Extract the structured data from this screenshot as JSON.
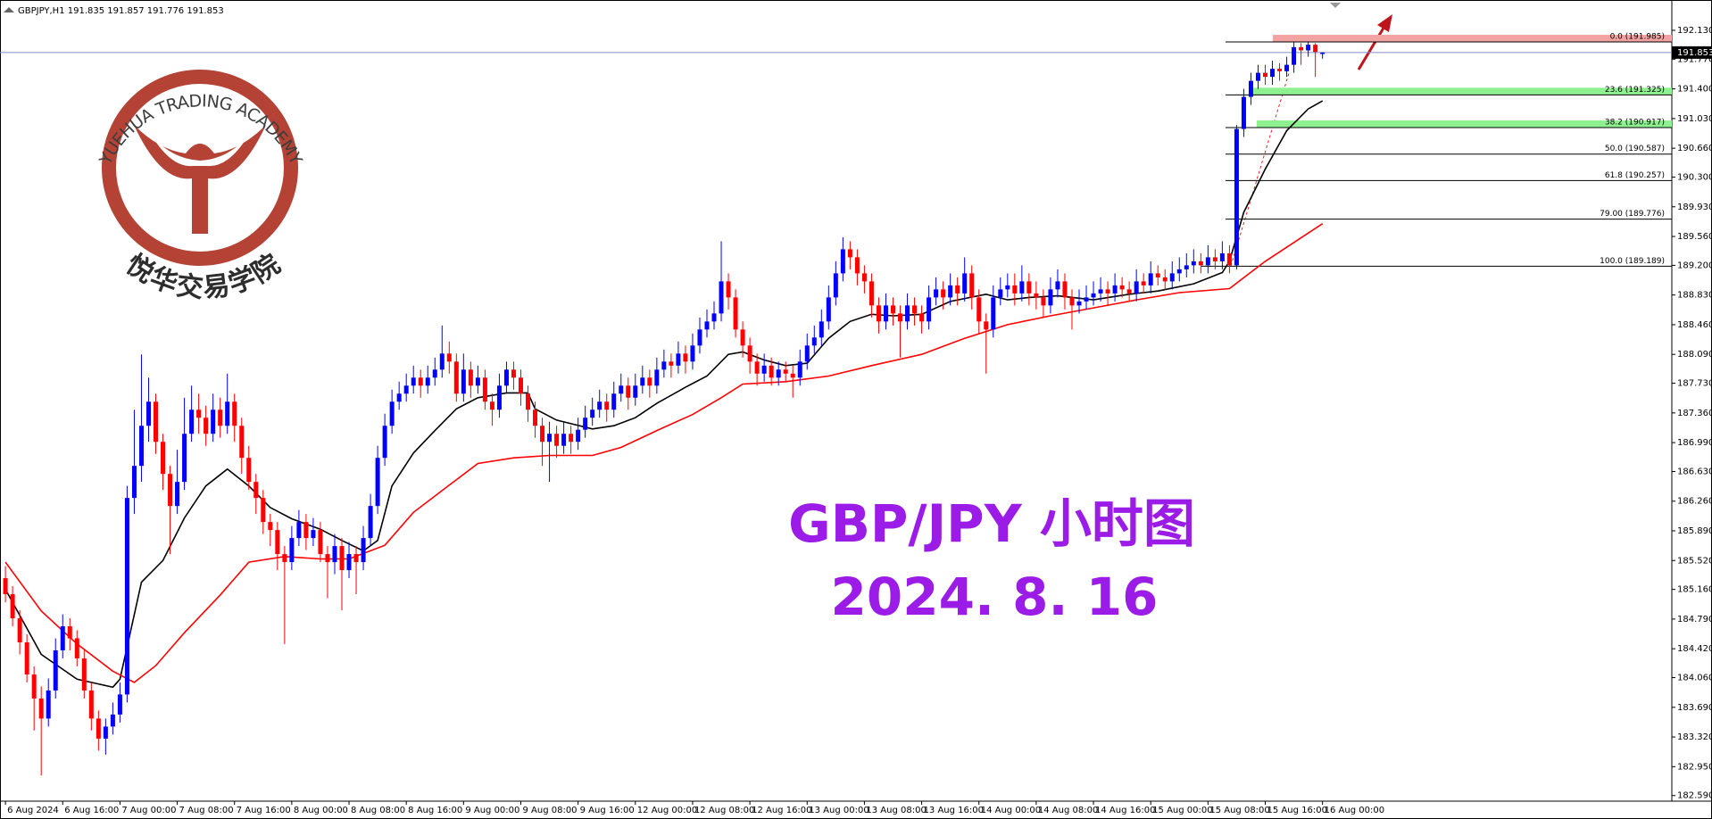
{
  "chart_data": {
    "type": "candlestick",
    "header": "GBPJPY,H1  191.835 191.857 191.776 191.853",
    "logo": {
      "text_en": "YUEHUA TRADING ACADEMY",
      "text_cn": "悦华交易学院"
    },
    "annotations": [
      "GBP/JPY 小时图",
      "2024. 8. 16"
    ],
    "up_color": "#0000ff",
    "down_color": "#ff0000",
    "xlim": [
      -0.76,
      232.8
    ],
    "ylim": [
      182.52,
      192.43
    ],
    "yticks": [
      {
        "value": 192.13,
        "label": "192.130"
      },
      {
        "value": 191.77,
        "label": "191.770"
      },
      {
        "value": 191.4,
        "label": "191.400"
      },
      {
        "value": 191.03,
        "label": "191.030"
      },
      {
        "value": 190.66,
        "label": "190.660"
      },
      {
        "value": 190.3,
        "label": "190.300"
      },
      {
        "value": 189.93,
        "label": "189.930"
      },
      {
        "value": 189.56,
        "label": "189.560"
      },
      {
        "value": 189.2,
        "label": "189.200"
      },
      {
        "value": 188.83,
        "label": "188.830"
      },
      {
        "value": 188.46,
        "label": "188.460"
      },
      {
        "value": 188.09,
        "label": "188.090"
      },
      {
        "value": 187.73,
        "label": "187.730"
      },
      {
        "value": 187.36,
        "label": "187.360"
      },
      {
        "value": 186.99,
        "label": "186.990"
      },
      {
        "value": 186.63,
        "label": "186.630"
      },
      {
        "value": 186.26,
        "label": "186.260"
      },
      {
        "value": 185.89,
        "label": "185.890"
      },
      {
        "value": 185.52,
        "label": "185.520"
      },
      {
        "value": 185.16,
        "label": "185.160"
      },
      {
        "value": 184.79,
        "label": "184.790"
      },
      {
        "value": 184.42,
        "label": "184.420"
      },
      {
        "value": 184.06,
        "label": "184.060"
      },
      {
        "value": 183.69,
        "label": "183.690"
      },
      {
        "value": 183.32,
        "label": "183.320"
      },
      {
        "value": 182.95,
        "label": "182.950"
      },
      {
        "value": 182.59,
        "label": "182.590"
      }
    ],
    "xticks": [
      {
        "value": 0,
        "label": "6 Aug 2024"
      },
      {
        "value": 8,
        "label": "6 Aug 16:00"
      },
      {
        "value": 16,
        "label": "7 Aug 00:00"
      },
      {
        "value": 24,
        "label": "7 Aug 08:00"
      },
      {
        "value": 32,
        "label": "7 Aug 16:00"
      },
      {
        "value": 40,
        "label": "8 Aug 00:00"
      },
      {
        "value": 48,
        "label": "8 Aug 08:00"
      },
      {
        "value": 56,
        "label": "8 Aug 16:00"
      },
      {
        "value": 64,
        "label": "9 Aug 00:00"
      },
      {
        "value": 72,
        "label": "9 Aug 08:00"
      },
      {
        "value": 80,
        "label": "9 Aug 16:00"
      },
      {
        "value": 88,
        "label": "12 Aug 00:00"
      },
      {
        "value": 96,
        "label": "12 Aug 08:00"
      },
      {
        "value": 104,
        "label": "12 Aug 16:00"
      },
      {
        "value": 112,
        "label": "13 Aug 00:00"
      },
      {
        "value": 120,
        "label": "13 Aug 08:00"
      },
      {
        "value": 128,
        "label": "13 Aug 16:00"
      },
      {
        "value": 136,
        "label": "14 Aug 00:00"
      },
      {
        "value": 144,
        "label": "14 Aug 08:00"
      },
      {
        "value": 152,
        "label": "14 Aug 16:00"
      },
      {
        "value": 160,
        "label": "15 Aug 00:00"
      },
      {
        "value": 168,
        "label": "15 Aug 08:00"
      },
      {
        "value": 176,
        "label": "15 Aug 16:00"
      },
      {
        "value": 184,
        "label": "16 Aug 00:00"
      }
    ],
    "last_price": {
      "value": 191.853,
      "label": "191.853"
    },
    "fib_levels": [
      {
        "value": 191.985,
        "label": "0.0 (191.985)"
      },
      {
        "value": 191.325,
        "label": "23.6 (191.325)"
      },
      {
        "value": 190.917,
        "label": "38.2 (190.917)"
      },
      {
        "value": 190.587,
        "label": "50.0 (190.587)"
      },
      {
        "value": 190.257,
        "label": "61.8 (190.257)"
      },
      {
        "value": 189.776,
        "label": "79.00 (189.776)"
      },
      {
        "value": 189.189,
        "label": "100.0 (189.189)"
      }
    ],
    "moving_averages": [
      {
        "color": "#000000",
        "x": [
          0,
          5,
          10,
          15,
          16,
          19,
          22,
          25,
          28,
          31,
          34,
          37,
          40,
          44,
          47,
          50,
          52,
          54,
          57,
          60,
          63,
          66,
          70,
          73,
          74,
          77,
          82,
          85,
          88,
          91,
          95,
          98,
          101,
          103,
          106,
          109,
          112,
          115,
          118,
          121,
          124,
          128,
          132,
          137,
          140,
          143,
          147,
          152,
          157,
          161,
          166,
          170,
          171,
          173,
          176,
          179,
          182,
          184
        ],
        "values": [
          185.16,
          184.35,
          184.04,
          183.94,
          184.04,
          185.25,
          185.52,
          186.05,
          186.45,
          186.66,
          186.45,
          186.18,
          186.04,
          185.91,
          185.77,
          185.64,
          185.77,
          186.45,
          186.86,
          187.14,
          187.41,
          187.55,
          187.61,
          187.61,
          187.41,
          187.27,
          187.16,
          187.2,
          187.3,
          187.48,
          187.68,
          187.82,
          188.09,
          188.12,
          188.02,
          187.95,
          187.98,
          188.29,
          188.5,
          188.59,
          188.57,
          188.59,
          188.75,
          188.84,
          188.77,
          188.8,
          188.82,
          188.77,
          188.84,
          188.88,
          188.97,
          189.11,
          189.25,
          189.86,
          190.4,
          190.88,
          191.15,
          191.25
        ]
      },
      {
        "color": "#ff0000",
        "x": [
          0,
          5,
          10,
          15,
          18,
          21,
          25,
          30,
          34,
          39,
          44,
          48,
          53,
          57,
          62,
          66,
          71,
          76,
          82,
          86,
          91,
          96,
          100,
          103,
          109,
          115,
          121,
          128,
          134,
          140,
          146,
          152,
          158,
          164,
          171,
          176,
          184
        ],
        "values": [
          185.5,
          184.89,
          184.48,
          184.14,
          184.0,
          184.21,
          184.62,
          185.09,
          185.5,
          185.57,
          185.54,
          185.54,
          185.71,
          186.12,
          186.46,
          186.73,
          186.8,
          186.83,
          186.83,
          186.93,
          187.14,
          187.34,
          187.55,
          187.72,
          187.75,
          187.82,
          187.95,
          188.09,
          188.29,
          188.46,
          188.57,
          188.67,
          188.77,
          188.86,
          188.91,
          189.25,
          189.72
        ]
      }
    ],
    "candles": {
      "open": [
        185.3,
        185.1,
        184.8,
        184.5,
        184.1,
        183.8,
        183.55,
        183.9,
        184.4,
        184.7,
        184.55,
        184.3,
        183.9,
        183.55,
        183.3,
        183.45,
        183.6,
        183.85,
        186.3,
        186.7,
        187.2,
        187.5,
        187.0,
        186.6,
        186.2,
        186.5,
        187.1,
        187.4,
        187.3,
        187.1,
        187.4,
        187.2,
        187.5,
        187.2,
        186.8,
        186.5,
        186.3,
        186.0,
        185.9,
        185.6,
        185.5,
        185.8,
        186.0,
        185.8,
        185.9,
        185.6,
        185.5,
        185.7,
        185.4,
        185.6,
        185.5,
        185.8,
        186.2,
        186.8,
        187.2,
        187.5,
        187.6,
        187.7,
        187.8,
        187.7,
        187.8,
        187.9,
        188.1,
        188.0,
        187.6,
        187.9,
        187.7,
        187.8,
        187.5,
        187.4,
        187.7,
        187.9,
        187.8,
        187.6,
        187.4,
        187.2,
        187.0,
        187.1,
        186.95,
        187.1,
        187.0,
        187.15,
        187.3,
        187.4,
        187.5,
        187.4,
        187.6,
        187.7,
        187.55,
        187.7,
        187.8,
        187.7,
        187.9,
        188.0,
        187.95,
        188.1,
        188.0,
        188.2,
        188.4,
        188.5,
        188.6,
        189.0,
        188.8,
        188.4,
        188.2,
        188.0,
        187.85,
        187.95,
        187.8,
        187.9,
        187.85,
        187.8,
        188.0,
        188.2,
        188.3,
        188.5,
        188.8,
        189.1,
        189.4,
        189.3,
        189.1,
        189.0,
        188.7,
        188.5,
        188.7,
        188.6,
        188.5,
        188.7,
        188.6,
        188.5,
        188.8,
        188.9,
        188.8,
        188.95,
        188.85,
        189.1,
        188.8,
        188.5,
        188.4,
        188.8,
        188.9,
        188.95,
        188.85,
        189.0,
        188.85,
        188.8,
        188.7,
        188.9,
        189.0,
        188.8,
        188.7,
        188.75,
        188.8,
        188.85,
        188.9,
        188.85,
        188.95,
        188.9,
        188.85,
        189.0,
        188.95,
        189.1,
        189.05,
        189.0,
        189.1,
        189.15,
        189.2,
        189.25,
        189.2,
        189.3,
        189.25,
        189.35,
        189.2,
        190.9,
        191.3,
        191.5,
        191.6,
        191.55,
        191.65,
        191.62,
        191.7,
        191.92,
        191.88,
        191.95,
        191.835
      ],
      "high": [
        185.45,
        185.2,
        184.9,
        184.6,
        184.2,
        183.95,
        184.05,
        184.55,
        184.85,
        184.8,
        184.65,
        184.4,
        184.0,
        183.65,
        183.55,
        183.75,
        184.0,
        186.45,
        187.4,
        188.09,
        187.8,
        187.6,
        187.1,
        186.7,
        186.9,
        187.55,
        187.7,
        187.6,
        187.45,
        187.6,
        187.55,
        187.85,
        187.6,
        187.3,
        186.95,
        186.6,
        186.4,
        186.1,
        186.0,
        185.7,
        185.95,
        186.15,
        186.1,
        186.05,
        186.0,
        185.7,
        185.85,
        185.8,
        185.75,
        185.7,
        185.95,
        186.35,
        186.95,
        187.35,
        187.65,
        187.75,
        187.85,
        187.95,
        187.9,
        187.95,
        188.05,
        188.45,
        188.25,
        188.1,
        188.1,
        188.0,
        187.95,
        187.9,
        187.6,
        187.85,
        188.0,
        188.0,
        187.9,
        187.7,
        187.5,
        187.3,
        187.25,
        187.2,
        187.25,
        187.2,
        187.3,
        187.45,
        187.55,
        187.65,
        187.6,
        187.75,
        187.85,
        187.8,
        187.85,
        187.95,
        187.9,
        188.05,
        188.15,
        188.1,
        188.25,
        188.2,
        188.35,
        188.55,
        188.65,
        188.75,
        189.5,
        189.1,
        188.9,
        188.5,
        188.3,
        188.1,
        188.1,
        188.05,
        188.0,
        188.0,
        187.95,
        188.15,
        188.35,
        188.45,
        188.65,
        188.95,
        189.25,
        189.55,
        189.5,
        189.4,
        189.2,
        189.1,
        188.8,
        188.85,
        188.8,
        188.7,
        188.85,
        188.8,
        188.7,
        188.95,
        189.05,
        189.0,
        189.1,
        189.05,
        189.3,
        189.2,
        188.9,
        188.6,
        188.95,
        189.05,
        189.1,
        189.1,
        189.2,
        189.1,
        189.0,
        188.9,
        189.05,
        189.15,
        189.1,
        188.9,
        188.9,
        188.95,
        189.0,
        189.05,
        189.0,
        189.1,
        189.05,
        189.0,
        189.15,
        189.1,
        189.25,
        189.2,
        189.15,
        189.25,
        189.3,
        189.35,
        189.4,
        189.35,
        189.45,
        189.4,
        189.5,
        189.45,
        190.95,
        191.4,
        191.6,
        191.7,
        191.7,
        191.75,
        191.72,
        191.8,
        191.985,
        191.97,
        191.98,
        191.97,
        191.857
      ],
      "low": [
        185.0,
        184.7,
        184.35,
        184.0,
        183.4,
        182.84,
        183.45,
        183.8,
        184.3,
        184.4,
        184.2,
        183.8,
        183.4,
        183.15,
        183.1,
        183.35,
        183.5,
        183.75,
        186.1,
        186.5,
        187.0,
        186.85,
        186.4,
        185.6,
        186.1,
        186.4,
        187.0,
        187.1,
        186.95,
        187.0,
        187.05,
        187.1,
        187.0,
        186.6,
        186.4,
        186.1,
        185.85,
        185.7,
        185.4,
        184.48,
        185.4,
        185.7,
        185.65,
        185.7,
        185.5,
        185.05,
        185.35,
        184.9,
        185.3,
        185.1,
        185.4,
        185.7,
        186.1,
        186.7,
        187.1,
        187.4,
        187.5,
        187.6,
        187.55,
        187.6,
        187.7,
        187.8,
        187.85,
        187.5,
        187.5,
        187.55,
        187.6,
        187.4,
        187.2,
        187.3,
        187.6,
        187.65,
        187.45,
        187.25,
        187.05,
        186.7,
        186.5,
        186.8,
        186.85,
        186.85,
        186.9,
        187.05,
        187.2,
        187.3,
        187.25,
        187.3,
        187.5,
        187.4,
        187.45,
        187.6,
        187.55,
        187.6,
        187.8,
        187.8,
        187.85,
        187.85,
        187.9,
        188.1,
        188.3,
        188.4,
        188.5,
        188.65,
        188.3,
        188.05,
        187.85,
        187.7,
        187.75,
        187.7,
        187.7,
        187.75,
        187.55,
        187.7,
        187.9,
        188.1,
        188.2,
        188.4,
        188.7,
        189.0,
        189.15,
        188.95,
        188.85,
        188.55,
        188.35,
        188.4,
        188.45,
        188.05,
        188.4,
        188.45,
        188.35,
        188.4,
        188.7,
        188.65,
        188.7,
        188.7,
        188.75,
        188.65,
        188.35,
        187.85,
        188.3,
        188.7,
        188.8,
        188.7,
        188.75,
        188.7,
        188.65,
        188.55,
        188.6,
        188.8,
        188.65,
        188.4,
        188.6,
        188.65,
        188.7,
        188.75,
        188.7,
        188.75,
        188.8,
        188.75,
        188.75,
        188.85,
        188.85,
        188.95,
        188.9,
        188.9,
        189.0,
        189.05,
        189.1,
        189.1,
        189.1,
        189.15,
        189.15,
        189.1,
        189.15,
        190.8,
        191.2,
        191.4,
        191.45,
        191.45,
        191.5,
        191.55,
        191.6,
        191.7,
        191.8,
        191.55,
        191.776
      ],
      "close": [
        185.1,
        184.8,
        184.5,
        184.1,
        183.8,
        183.55,
        183.9,
        184.4,
        184.7,
        184.55,
        184.3,
        183.9,
        183.55,
        183.3,
        183.45,
        183.6,
        183.85,
        186.3,
        186.7,
        187.2,
        187.5,
        187.0,
        186.6,
        186.2,
        186.5,
        187.1,
        187.4,
        187.3,
        187.1,
        187.4,
        187.2,
        187.5,
        187.2,
        186.8,
        186.5,
        186.3,
        186.0,
        185.9,
        185.6,
        185.5,
        185.8,
        186.0,
        185.8,
        185.9,
        185.6,
        185.5,
        185.7,
        185.4,
        185.6,
        185.5,
        185.8,
        186.2,
        186.8,
        187.2,
        187.5,
        187.6,
        187.7,
        187.8,
        187.7,
        187.8,
        187.9,
        188.1,
        188.0,
        187.6,
        187.9,
        187.7,
        187.8,
        187.5,
        187.4,
        187.7,
        187.9,
        187.8,
        187.6,
        187.4,
        187.2,
        187.0,
        187.1,
        186.95,
        187.1,
        187.0,
        187.15,
        187.3,
        187.4,
        187.5,
        187.4,
        187.6,
        187.7,
        187.55,
        187.7,
        187.8,
        187.7,
        187.9,
        188.0,
        187.95,
        188.1,
        188.0,
        188.2,
        188.4,
        188.5,
        188.6,
        189.0,
        188.8,
        188.4,
        188.2,
        188.0,
        187.85,
        187.95,
        187.8,
        187.9,
        187.85,
        187.8,
        188.0,
        188.2,
        188.3,
        188.5,
        188.8,
        189.1,
        189.4,
        189.3,
        189.1,
        189.0,
        188.7,
        188.5,
        188.7,
        188.6,
        188.5,
        188.7,
        188.6,
        188.5,
        188.8,
        188.9,
        188.8,
        188.95,
        188.85,
        189.1,
        188.8,
        188.5,
        188.4,
        188.8,
        188.9,
        188.95,
        188.85,
        189.0,
        188.85,
        188.8,
        188.7,
        188.9,
        189.0,
        188.8,
        188.7,
        188.75,
        188.8,
        188.85,
        188.9,
        188.85,
        188.95,
        188.9,
        188.85,
        189.0,
        188.95,
        189.1,
        189.05,
        189.0,
        189.1,
        189.15,
        189.2,
        189.25,
        189.2,
        189.3,
        189.25,
        189.35,
        189.2,
        190.9,
        191.3,
        191.5,
        191.6,
        191.55,
        191.65,
        191.62,
        191.7,
        191.92,
        191.88,
        191.95,
        191.86,
        191.853
      ]
    }
  }
}
